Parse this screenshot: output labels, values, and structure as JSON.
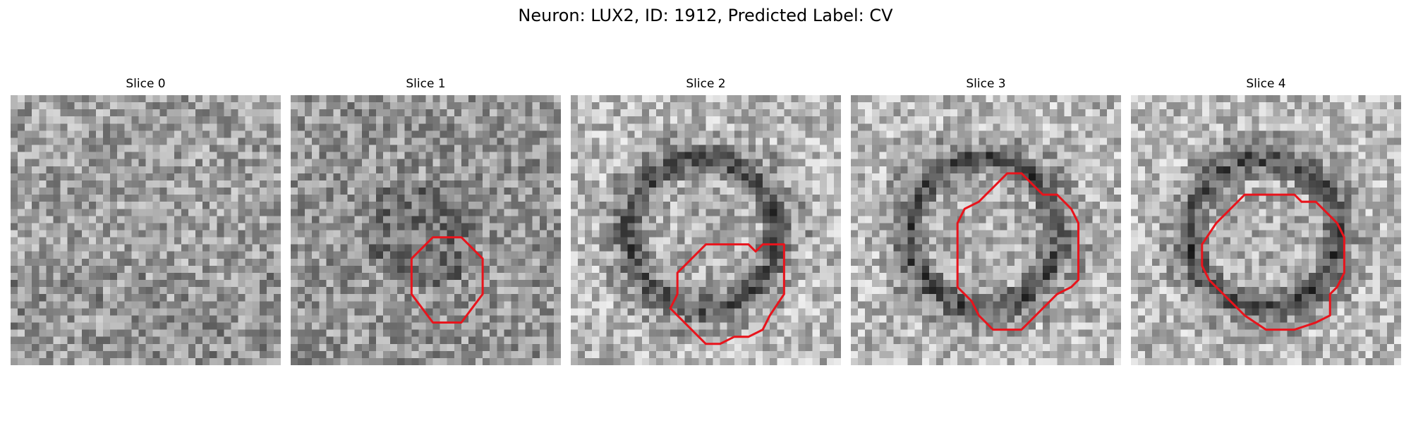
{
  "figure": {
    "title": "Neuron: LUX2, ID: 1912, Predicted Label: CV"
  },
  "panels": [
    {
      "title": "Slice 0",
      "contour": null,
      "pattern": "noise"
    },
    {
      "title": "Slice 1",
      "contour": [
        [
          17,
          23
        ],
        [
          20,
          20
        ],
        [
          24,
          20
        ],
        [
          27,
          23
        ],
        [
          27,
          28
        ],
        [
          24,
          32
        ],
        [
          20,
          32
        ],
        [
          17,
          28
        ]
      ],
      "pattern": "dim-blob"
    },
    {
      "title": "Slice 2",
      "contour": [
        [
          16,
          24
        ],
        [
          19,
          21
        ],
        [
          25,
          21
        ],
        [
          26,
          22
        ],
        [
          27,
          21
        ],
        [
          30,
          21
        ],
        [
          30,
          28
        ],
        [
          28,
          31
        ],
        [
          27,
          33
        ],
        [
          25,
          34
        ],
        [
          23,
          34
        ],
        [
          21,
          35
        ],
        [
          19,
          35
        ],
        [
          16,
          32
        ],
        [
          14,
          30
        ],
        [
          15,
          28
        ],
        [
          15,
          25
        ]
      ],
      "pattern": "ring"
    },
    {
      "title": "Slice 3",
      "contour": [
        [
          16,
          16
        ],
        [
          18,
          15
        ],
        [
          19,
          14
        ],
        [
          20,
          13
        ],
        [
          22,
          11
        ],
        [
          24,
          11
        ],
        [
          26,
          13
        ],
        [
          27,
          14
        ],
        [
          29,
          14
        ],
        [
          31,
          16
        ],
        [
          32,
          18
        ],
        [
          32,
          26
        ],
        [
          31,
          27
        ],
        [
          29,
          28
        ],
        [
          28,
          29
        ],
        [
          27,
          30
        ],
        [
          25,
          32
        ],
        [
          24,
          33
        ],
        [
          20,
          33
        ],
        [
          18,
          31
        ],
        [
          17,
          29
        ],
        [
          15,
          27
        ],
        [
          15,
          18
        ]
      ],
      "pattern": "ring"
    },
    {
      "title": "Slice 4",
      "contour": [
        [
          10,
          21
        ],
        [
          12,
          18
        ],
        [
          14,
          16
        ],
        [
          16,
          14
        ],
        [
          23,
          14
        ],
        [
          24,
          15
        ],
        [
          26,
          15
        ],
        [
          28,
          17
        ],
        [
          29,
          18
        ],
        [
          30,
          20
        ],
        [
          30,
          25
        ],
        [
          29,
          27
        ],
        [
          28,
          28
        ],
        [
          28,
          31
        ],
        [
          26,
          32
        ],
        [
          23,
          33
        ],
        [
          19,
          33
        ],
        [
          16,
          31
        ],
        [
          13,
          28
        ],
        [
          11,
          26
        ],
        [
          10,
          24
        ]
      ],
      "pattern": "ring"
    }
  ]
}
